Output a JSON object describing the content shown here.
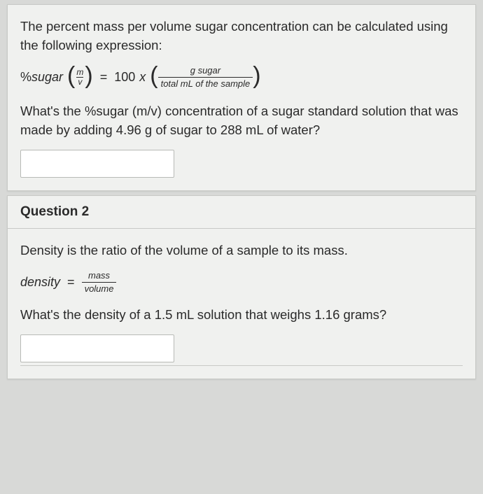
{
  "q1": {
    "intro": "The percent mass per volume sugar concentration can be calculated using the following expression:",
    "formula": {
      "lhs_text": "%sugar",
      "lhs_frac_num": "m",
      "lhs_frac_den": "v",
      "eq": "=",
      "hundred": "100",
      "times": "x",
      "rhs_num": "g sugar",
      "rhs_den": "total mL of the sample"
    },
    "question": "What's the %sugar (m/v) concentration of a sugar standard solution that was made by adding 4.96 g of sugar to 288 mL of water?",
    "answer": "",
    "colors": {
      "bg": "#f0f1ef",
      "text": "#2a2a2a",
      "border": "#c8c9c6",
      "input_bg": "#ffffff"
    }
  },
  "q2": {
    "title": "Question 2",
    "intro": "Density is the ratio of the volume of a sample to its mass.",
    "formula": {
      "lhs": "density",
      "eq": "=",
      "num": "mass",
      "den": "volume"
    },
    "question": "What's the density of a 1.5 mL solution that weighs 1.16 grams?",
    "answer": "",
    "colors": {
      "bg": "#f0f1ef",
      "text": "#2a2a2a",
      "border": "#c8c9c6",
      "input_bg": "#ffffff"
    }
  },
  "page": {
    "bg": "#d8d9d7",
    "font": "system-ui"
  }
}
